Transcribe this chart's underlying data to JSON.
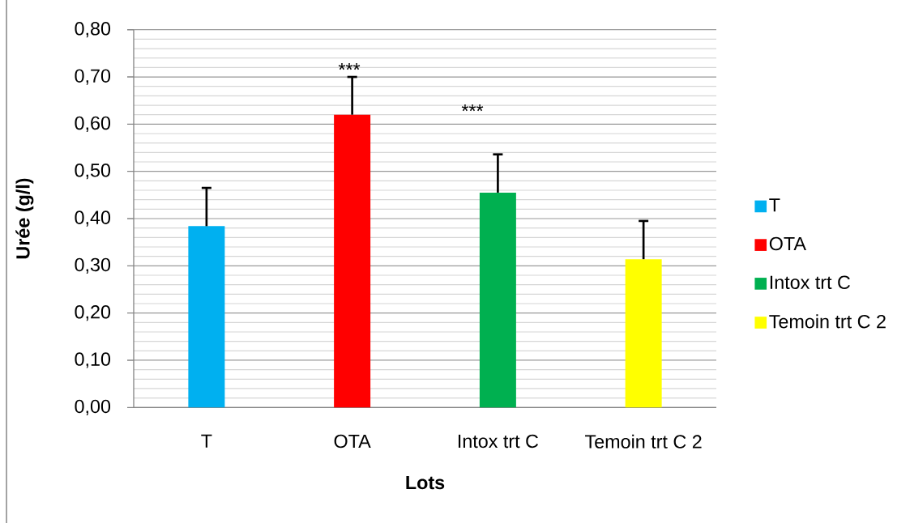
{
  "chart_data": {
    "type": "bar",
    "xlabel": "Lots",
    "ylabel": "Urée (g/l)",
    "categories": [
      "T",
      "OTA",
      "Intox trt C",
      "Temoin trt C 2"
    ],
    "series": [
      {
        "name": "T",
        "color": "#00b0f0",
        "values": [
          0.384,
          null,
          null,
          null
        ],
        "errors": [
          [
            0.384,
            0.465
          ],
          null,
          null,
          null
        ]
      },
      {
        "name": "OTA",
        "color": "#ff0000",
        "values": [
          null,
          0.62,
          null,
          null
        ],
        "errors": [
          null,
          [
            0.62,
            0.7
          ],
          null,
          null
        ]
      },
      {
        "name": "Intox trt C",
        "color": "#00b050",
        "values": [
          null,
          null,
          0.455,
          null
        ],
        "errors": [
          null,
          null,
          [
            0.455,
            0.536
          ],
          null
        ]
      },
      {
        "name": "Temoin trt C 2",
        "color": "#ffff00",
        "values": [
          null,
          null,
          null,
          0.314
        ],
        "errors": [
          null,
          null,
          null,
          [
            0.314,
            0.395
          ]
        ]
      }
    ],
    "ylim": [
      0,
      0.8
    ],
    "yticks": [
      {
        "value": 0,
        "label": "0,00"
      },
      {
        "value": 0.1,
        "label": "0,10"
      },
      {
        "value": 0.2,
        "label": "0,20"
      },
      {
        "value": 0.3,
        "label": "0,30"
      },
      {
        "value": 0.4,
        "label": "0,40"
      },
      {
        "value": 0.5,
        "label": "0,50"
      },
      {
        "value": 0.6,
        "label": "0,60"
      },
      {
        "value": 0.7,
        "label": "0,70"
      },
      {
        "value": 0.8,
        "label": "0,80"
      }
    ],
    "annotations": [
      "***",
      "***"
    ],
    "grid": "y",
    "legend": "right"
  }
}
